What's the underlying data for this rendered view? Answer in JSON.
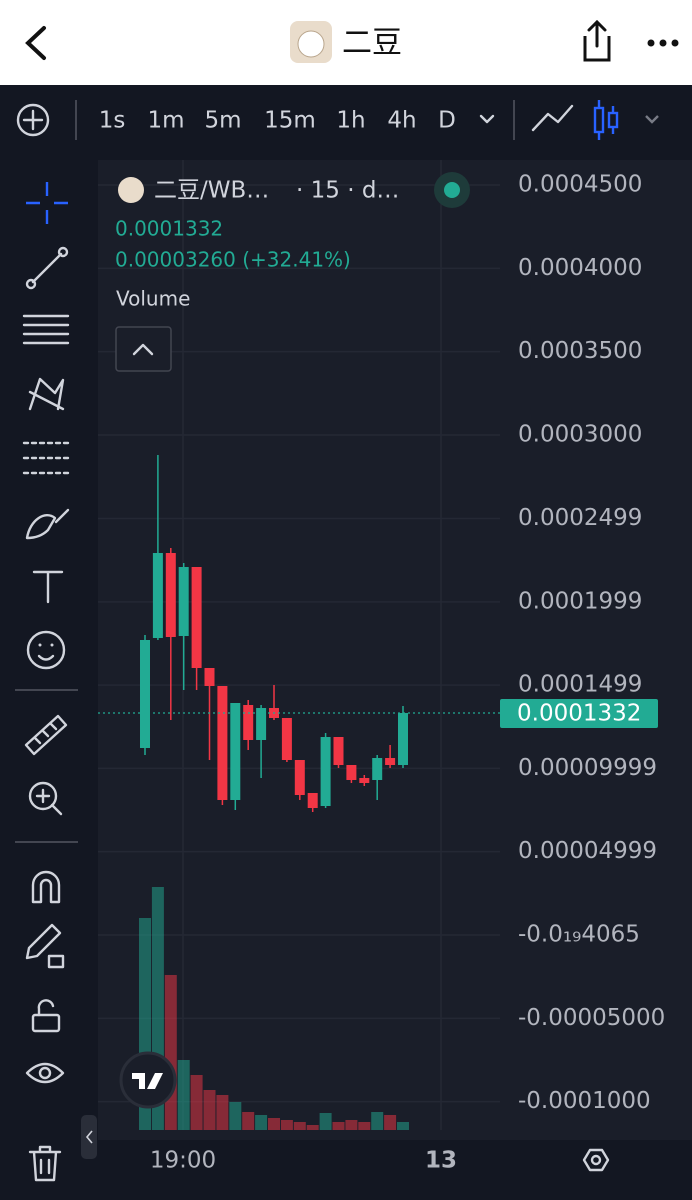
{
  "header": {
    "title": "二豆"
  },
  "toolbar": {
    "intervals": [
      "1s",
      "1m",
      "5m",
      "15m",
      "1h",
      "4h",
      "D"
    ],
    "active_interval": 3
  },
  "chart_data": {
    "type": "candlestick",
    "symbol": "二豆/WB…",
    "interval": "· 15 · d…",
    "price": "0.0001332",
    "change": "0.00003260 (+32.41%)",
    "volume_label": "Volume",
    "ylim": [
      -0.000117,
      0.000465
    ],
    "yticks": [
      {
        "value": 0.00045,
        "label": "0.0004500"
      },
      {
        "value": 0.0004,
        "label": "0.0004000"
      },
      {
        "value": 0.00035,
        "label": "0.0003500"
      },
      {
        "value": 0.0003,
        "label": "0.0003000"
      },
      {
        "value": 0.0002499,
        "label": "0.0002499"
      },
      {
        "value": 0.0001999,
        "label": "0.0001999"
      },
      {
        "value": 0.0001499,
        "label": "0.0001499"
      },
      {
        "value": 9.999e-05,
        "label": "0.00009999"
      },
      {
        "value": 4.999e-05,
        "label": "0.00004999"
      },
      {
        "value": -4.065e-20,
        "label": "-0.0₁₉4065"
      },
      {
        "value": -5e-05,
        "label": "-0.00005000"
      },
      {
        "value": -0.0001,
        "label": "-0.0001000"
      }
    ],
    "last_price": {
      "value": 0.0001332,
      "label": "0.0001332"
    },
    "up_color": "#22ab94",
    "down_color": "#f23645",
    "x_labels": [
      "19:00",
      "13"
    ],
    "candles": [
      {
        "open": 0.0001122,
        "high": 0.00018,
        "low": 0.000108,
        "close": 0.000177
      },
      {
        "open": 0.0001782,
        "high": 0.000288,
        "low": 0.000177,
        "close": 0.0002292
      },
      {
        "open": 0.0002292,
        "high": 0.0002322,
        "low": 0.000129,
        "close": 0.0001788
      },
      {
        "open": 0.0001794,
        "high": 0.0002232,
        "low": 0.000147,
        "close": 0.0002208
      },
      {
        "open": 0.0002208,
        "high": 0.0002208,
        "low": 0.000147,
        "close": 0.0001602
      },
      {
        "open": 0.0001602,
        "high": 0.0001602,
        "low": 0.000105,
        "close": 0.0001494
      },
      {
        "open": 0.0001494,
        "high": 0.0001494,
        "low": 7.8e-05,
        "close": 8.1e-05
      },
      {
        "open": 8.1e-05,
        "high": 0.0001392,
        "low": 7.5e-05,
        "close": 0.0001392
      },
      {
        "open": 0.000138,
        "high": 0.000141,
        "low": 0.000111,
        "close": 0.000117
      },
      {
        "open": 0.000117,
        "high": 0.000138,
        "low": 9.42e-05,
        "close": 0.0001362
      },
      {
        "open": 0.0001362,
        "high": 0.00015,
        "low": 0.000129,
        "close": 0.0001302
      },
      {
        "open": 0.0001302,
        "high": 0.0001302,
        "low": 0.0001038,
        "close": 0.000105
      },
      {
        "open": 0.000105,
        "high": 0.000105,
        "low": 8.1e-05,
        "close": 8.4e-05
      },
      {
        "open": 8.52e-05,
        "high": 8.52e-05,
        "low": 7.38e-05,
        "close": 7.62e-05
      },
      {
        "open": 7.74e-05,
        "high": 0.0001212,
        "low": 7.62e-05,
        "close": 0.0001188
      },
      {
        "open": 0.0001188,
        "high": 0.0001188,
        "low": 0.0001002,
        "close": 0.000102
      },
      {
        "open": 0.000102,
        "high": 0.000102,
        "low": 9.12e-05,
        "close": 9.3e-05
      },
      {
        "open": 9.42e-05,
        "high": 9.6e-05,
        "low": 8.94e-05,
        "close": 9.12e-05
      },
      {
        "open": 9.3e-05,
        "high": 0.000108,
        "low": 8.1e-05,
        "close": 0.0001062
      },
      {
        "open": 0.0001062,
        "high": 0.000114,
        "low": 0.0001002,
        "close": 0.000102
      },
      {
        "open": 0.000102,
        "high": 0.0001374,
        "low": 0.0001002,
        "close": 0.0001332
      }
    ],
    "volume": [
      212,
      243,
      155,
      70,
      55,
      40,
      35,
      28,
      18,
      15,
      12,
      10,
      8,
      5,
      17,
      8,
      10,
      8,
      18,
      15,
      8
    ]
  }
}
